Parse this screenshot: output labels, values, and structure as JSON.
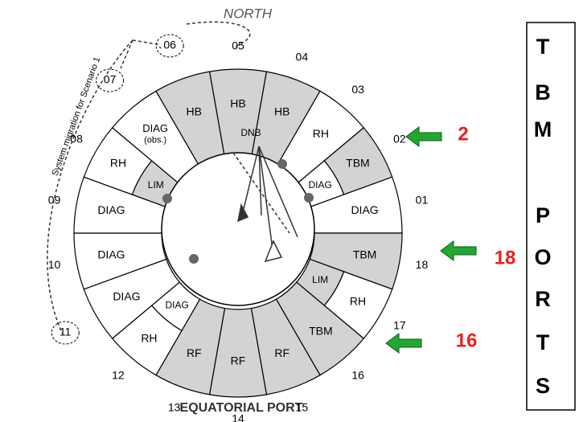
{
  "header": {
    "title": "NORTH",
    "footer": "EQUATORIAL PORT",
    "migration_note": "System migration for Scenario 1",
    "center_label": "DNB"
  },
  "ports": [
    {
      "number": "05",
      "label": "HB",
      "shade": "#d3d3d3"
    },
    {
      "number": "04",
      "label": "HB",
      "shade": "#d3d3d3"
    },
    {
      "number": "03",
      "label": "RH",
      "shade": "#ffffff"
    },
    {
      "number": "02",
      "label": "TBM",
      "shade": "#d3d3d3",
      "inner": "DIAG",
      "inner_shade": "#ffffff"
    },
    {
      "number": "01",
      "label": "DIAG",
      "shade": "#ffffff"
    },
    {
      "number": "18",
      "label": "TBM",
      "shade": "#d3d3d3"
    },
    {
      "number": "17",
      "label": "RH",
      "shade": "#ffffff",
      "inner": "LIM",
      "inner_shade": "#d3d3d3"
    },
    {
      "number": "16",
      "label": "TBM",
      "shade": "#d3d3d3"
    },
    {
      "number": "15",
      "label": "RF",
      "shade": "#d3d3d3"
    },
    {
      "number": "14",
      "label": "RF",
      "shade": "#d3d3d3"
    },
    {
      "number": "13",
      "label": "RF",
      "shade": "#d3d3d3"
    },
    {
      "number": "12",
      "label": "RH",
      "shade": "#ffffff",
      "inner": "DIAG",
      "inner_shade": "#ffffff"
    },
    {
      "number": "11",
      "label": "DIAG",
      "shade": "#ffffff",
      "circled": true
    },
    {
      "number": "10",
      "label": "DIAG",
      "shade": "#ffffff"
    },
    {
      "number": "09",
      "label": "DIAG",
      "shade": "#ffffff"
    },
    {
      "number": "08",
      "label": "RH",
      "shade": "#ffffff",
      "inner": "LIM",
      "inner_shade": "#d3d3d3"
    },
    {
      "number": "07",
      "label": "DIAG",
      "sublabel": "(obs.)",
      "shade": "#ffffff",
      "circled": true
    },
    {
      "number": "06",
      "label": "HB",
      "shade": "#d3d3d3",
      "circled": true
    }
  ],
  "highlights": [
    {
      "label": "2"
    },
    {
      "label": "18"
    },
    {
      "label": "16"
    }
  ],
  "side_box": {
    "letters": [
      "T",
      "B",
      "M",
      "P",
      "O",
      "R",
      "T",
      "S"
    ]
  }
}
